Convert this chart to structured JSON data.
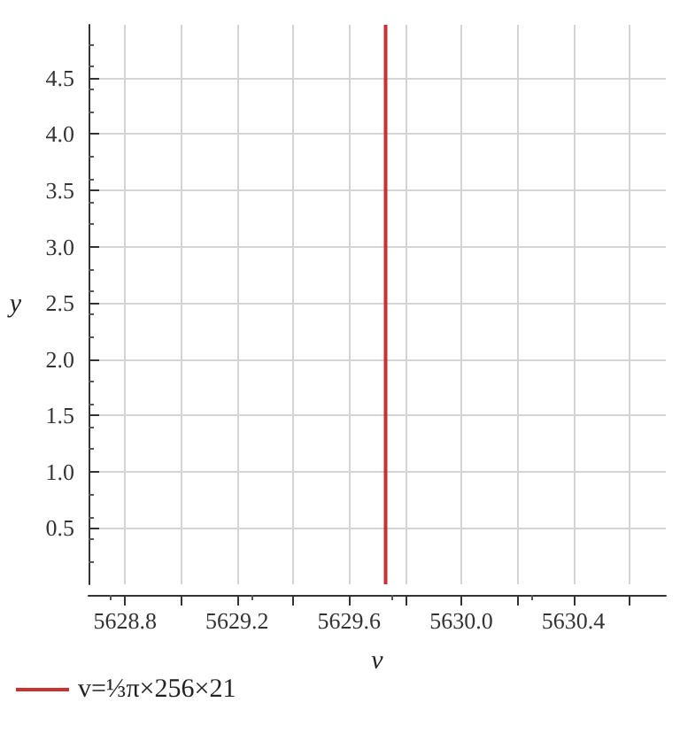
{
  "chart_data": {
    "type": "line",
    "xlabel": "v",
    "ylabel": "y",
    "xlim": [
      5628.67,
      5630.73
    ],
    "ylim": [
      0,
      4.97
    ],
    "xticks": [
      {
        "value": 5628.8,
        "label": "5628.8"
      },
      {
        "value": 5629,
        "label": null
      },
      {
        "value": 5629.2,
        "label": "5629.2"
      },
      {
        "value": 5629.4,
        "label": null
      },
      {
        "value": 5629.6,
        "label": "5629.6"
      },
      {
        "value": 5629.8,
        "label": null
      },
      {
        "value": 5630,
        "label": "5630.0"
      },
      {
        "value": 5630.2,
        "label": null
      },
      {
        "value": 5630.4,
        "label": "5630.4"
      },
      {
        "value": 5630.6,
        "label": null
      }
    ],
    "yticks": [
      0.5,
      {
        "value": 1,
        "label": "1.0"
      },
      1.5,
      {
        "value": 2,
        "label": "2.0"
      },
      2.5,
      {
        "value": 3,
        "label": "3.0"
      },
      3.5,
      {
        "value": 4,
        "label": "4.0"
      },
      4.5
    ],
    "series": [
      {
        "name": "v=⅓π×256×21",
        "color": "#c83232",
        "x": [
          5629.73,
          5629.73
        ],
        "values": [
          0,
          4.97
        ]
      }
    ],
    "grid": true,
    "legend": "bottom left",
    "marker": "none",
    "line_style": "solid"
  }
}
